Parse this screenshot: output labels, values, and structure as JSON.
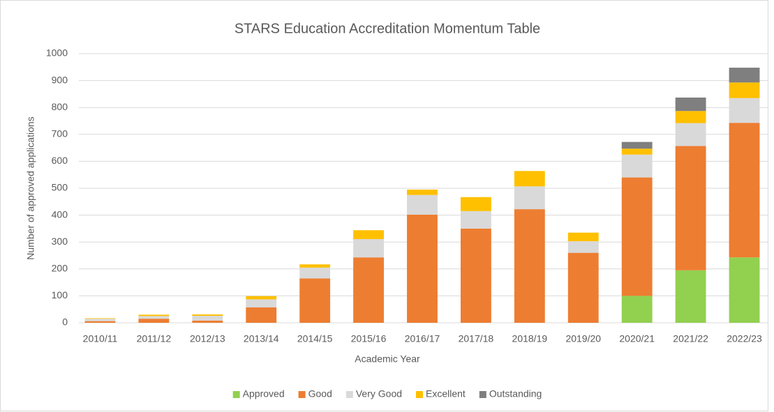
{
  "chart_data": {
    "type": "stacked_bar",
    "title": "STARS Education Accreditation Momentum Table",
    "xlabel": "Academic Year",
    "ylabel": "Number of approved applications",
    "categories": [
      "2010/11",
      "2011/12",
      "2012/13",
      "2013/14",
      "2014/15",
      "2015/16",
      "2016/17",
      "2017/18",
      "2018/19",
      "2019/20",
      "2020/21",
      "2021/22",
      "2022/23"
    ],
    "series": [
      {
        "name": "Approved",
        "color": "#92d050",
        "values": [
          0,
          0,
          0,
          0,
          0,
          0,
          0,
          0,
          0,
          0,
          100,
          195,
          243
        ]
      },
      {
        "name": "Good",
        "color": "#ed7d31",
        "values": [
          6,
          15,
          8,
          57,
          165,
          243,
          402,
          350,
          422,
          260,
          440,
          462,
          500
        ]
      },
      {
        "name": "Very Good",
        "color": "#d9d9d9",
        "values": [
          9,
          10,
          18,
          30,
          40,
          68,
          73,
          65,
          85,
          43,
          85,
          85,
          92
        ]
      },
      {
        "name": "Excellent",
        "color": "#ffc000",
        "values": [
          2,
          5,
          5,
          12,
          12,
          33,
          20,
          52,
          57,
          32,
          22,
          45,
          58
        ]
      },
      {
        "name": "Outstanding",
        "color": "#7f7f7f",
        "values": [
          0,
          0,
          0,
          0,
          0,
          0,
          0,
          0,
          0,
          0,
          25,
          50,
          55
        ]
      }
    ],
    "ylim": [
      0,
      1000
    ],
    "yticks": [
      0,
      100,
      200,
      300,
      400,
      500,
      600,
      700,
      800,
      900,
      1000
    ],
    "grid": true,
    "legend": "bottom"
  }
}
